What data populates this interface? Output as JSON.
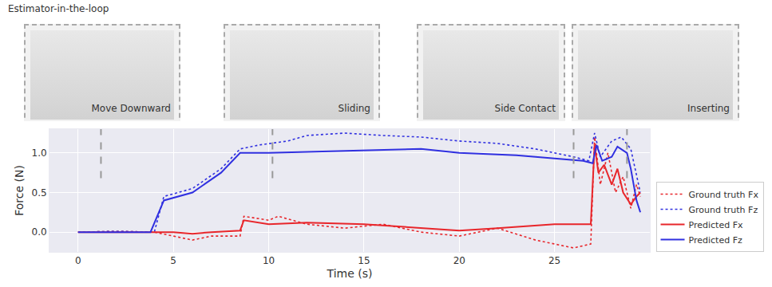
{
  "chart_data": {
    "type": "line",
    "title": "Estimator-in-the-loop",
    "x_label": "Time (s)",
    "y_label": "Force (N)",
    "xlim": [
      -1.5,
      30
    ],
    "xticks": [
      0,
      5,
      10,
      15,
      20,
      25
    ],
    "ylim": [
      -0.25,
      1.3
    ],
    "yticks": [
      {
        "value": 0,
        "label": "0.0"
      },
      {
        "value": 0.5,
        "label": "0.5"
      },
      {
        "value": 1,
        "label": "1.0"
      }
    ],
    "grid": true,
    "legend": "lower right",
    "annotations": [
      {
        "text": "Move Downward",
        "x": 1.2
      },
      {
        "text": "Sliding",
        "x": 10.2
      },
      {
        "text": "Side Contact",
        "x": 26.0
      },
      {
        "text": "Inserting",
        "x": 28.8
      }
    ],
    "series": [
      {
        "name": "Ground truth Fx",
        "color": "#e8262b",
        "line_style": "dotted",
        "x": [
          0,
          2,
          4,
          5,
          6,
          7,
          8.5,
          8.7,
          10,
          10.5,
          12,
          14,
          16,
          18,
          20,
          22,
          24,
          26,
          26.9,
          27.1,
          27.4,
          27.8,
          28.2,
          28.6,
          29,
          29.3,
          29.5
        ],
        "values": [
          0,
          0.01,
          0,
          -0.05,
          -0.1,
          -0.05,
          -0.05,
          0.2,
          0.15,
          0.2,
          0.1,
          0.05,
          0.1,
          0,
          -0.05,
          0.05,
          -0.1,
          -0.2,
          -0.15,
          1.2,
          0.6,
          1.0,
          0.5,
          0.7,
          0.3,
          0.6,
          0.45
        ]
      },
      {
        "name": "Ground truth Fz",
        "color": "#3030e0",
        "line_style": "dotted",
        "x": [
          0,
          2,
          4,
          4.5,
          6,
          7.5,
          8.5,
          9.5,
          11,
          12,
          14,
          16,
          18,
          20,
          22,
          24,
          26,
          26.8,
          27.1,
          27.4,
          28,
          28.5,
          29,
          29.3,
          29.5
        ],
        "values": [
          0,
          0.01,
          0,
          0.45,
          0.55,
          0.8,
          1.05,
          1.1,
          1.15,
          1.22,
          1.25,
          1.22,
          1.2,
          1.15,
          1.12,
          1.05,
          0.95,
          0.9,
          1.25,
          0.95,
          1.15,
          1.2,
          1.05,
          0.7,
          0.5
        ]
      },
      {
        "name": "Predicted Fx",
        "color": "#e8262b",
        "line_style": "solid",
        "x": [
          0,
          3,
          5,
          6,
          7,
          8.5,
          8.7,
          10,
          12,
          15,
          18,
          20,
          22,
          25,
          26.9,
          27.1,
          27.3,
          27.6,
          28,
          28.3,
          28.6,
          29,
          29.3,
          29.5
        ],
        "values": [
          0,
          0,
          0,
          -0.02,
          0,
          0.02,
          0.15,
          0.1,
          0.12,
          0.1,
          0.05,
          0.02,
          0.05,
          0.1,
          0.1,
          1.1,
          0.75,
          0.85,
          0.6,
          0.8,
          0.5,
          0.35,
          0.45,
          0.5
        ]
      },
      {
        "name": "Predicted Fz",
        "color": "#3030e0",
        "line_style": "solid",
        "x": [
          0,
          2,
          3.8,
          4.5,
          6,
          7.5,
          8.5,
          10,
          15,
          18,
          20,
          23,
          25,
          26.5,
          27,
          27.2,
          27.5,
          28,
          28.3,
          28.8,
          29,
          29.3,
          29.5
        ],
        "values": [
          0,
          0,
          0,
          0.4,
          0.5,
          0.75,
          1.0,
          1.0,
          1.03,
          1.05,
          1.0,
          0.97,
          0.93,
          0.9,
          0.87,
          1.1,
          0.9,
          0.95,
          1.08,
          1.0,
          0.8,
          0.4,
          0.25
        ]
      }
    ]
  }
}
